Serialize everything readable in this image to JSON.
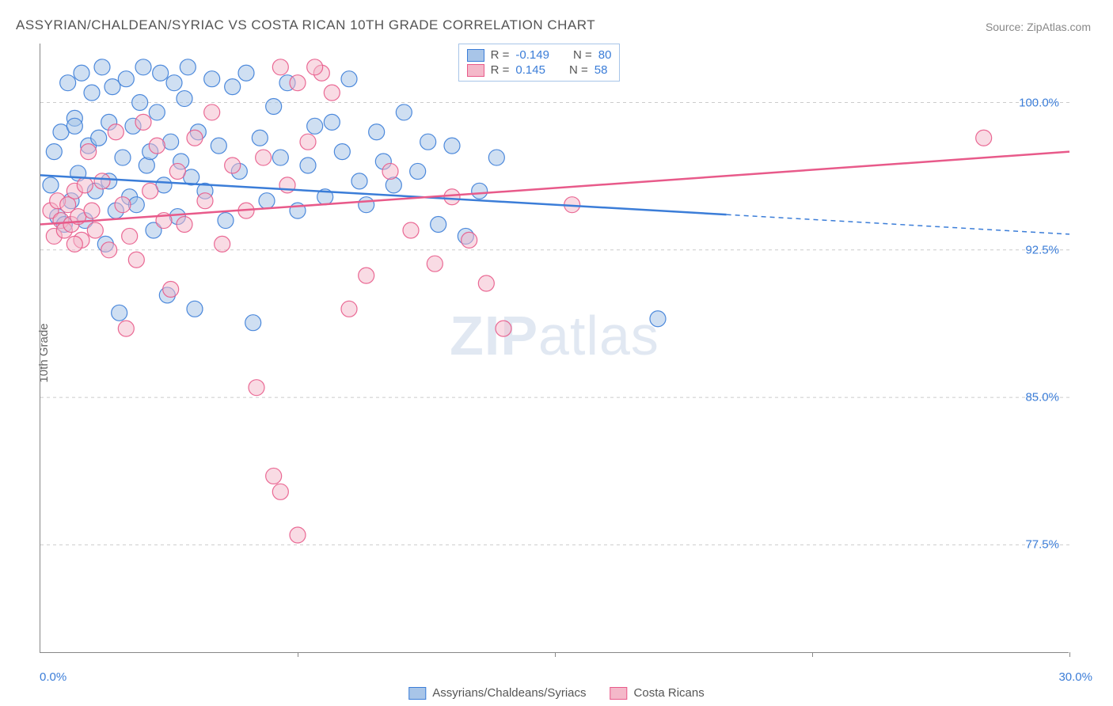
{
  "title": "ASSYRIAN/CHALDEAN/SYRIAC VS COSTA RICAN 10TH GRADE CORRELATION CHART",
  "source": "Source: ZipAtlas.com",
  "ylabel": "10th Grade",
  "watermark_bold": "ZIP",
  "watermark_light": "atlas",
  "chart": {
    "type": "scatter",
    "xlim": [
      0,
      30
    ],
    "ylim": [
      72,
      103
    ],
    "xticks": [
      0,
      7.5,
      15,
      22.5,
      30
    ],
    "xtick_labels": [
      "0.0%",
      "",
      "",
      "",
      "30.0%"
    ],
    "yticks": [
      77.5,
      85.0,
      92.5,
      100.0
    ],
    "ytick_labels": [
      "77.5%",
      "85.0%",
      "92.5%",
      "100.0%"
    ],
    "grid_color": "#cccccc",
    "background_color": "#ffffff",
    "axis_color": "#888888",
    "tick_label_color": "#3b7dd8",
    "series": [
      {
        "name": "Assyrians/Chaldeans/Syriacs",
        "color_fill": "#a8c5e8",
        "color_stroke": "#3b7dd8",
        "marker_radius": 10,
        "marker_opacity": 0.55,
        "R": "-0.149",
        "N": "80",
        "trend": {
          "x1": 0,
          "y1": 96.3,
          "x2": 20,
          "y2": 94.3,
          "width": 2.5,
          "ext_x2": 30,
          "ext_y2": 93.3,
          "dash": "6,5"
        },
        "points": [
          [
            0.3,
            95.8
          ],
          [
            0.4,
            97.5
          ],
          [
            0.5,
            94.2
          ],
          [
            0.6,
            98.5
          ],
          [
            0.7,
            93.8
          ],
          [
            0.8,
            101.0
          ],
          [
            0.9,
            95.0
          ],
          [
            1.0,
            99.2
          ],
          [
            1.1,
            96.4
          ],
          [
            1.2,
            101.5
          ],
          [
            1.3,
            94.0
          ],
          [
            1.4,
            97.8
          ],
          [
            1.5,
            100.5
          ],
          [
            1.6,
            95.5
          ],
          [
            1.7,
            98.2
          ],
          [
            1.8,
            101.8
          ],
          [
            1.9,
            92.8
          ],
          [
            2.0,
            96.0
          ],
          [
            2.1,
            100.8
          ],
          [
            2.2,
            94.5
          ],
          [
            2.3,
            89.3
          ],
          [
            2.4,
            97.2
          ],
          [
            2.5,
            101.2
          ],
          [
            2.6,
            95.2
          ],
          [
            2.7,
            98.8
          ],
          [
            2.8,
            94.8
          ],
          [
            2.9,
            100.0
          ],
          [
            3.0,
            101.8
          ],
          [
            3.1,
            96.8
          ],
          [
            3.2,
            97.5
          ],
          [
            3.3,
            93.5
          ],
          [
            3.4,
            99.5
          ],
          [
            3.5,
            101.5
          ],
          [
            3.6,
            95.8
          ],
          [
            3.7,
            90.2
          ],
          [
            3.8,
            98.0
          ],
          [
            3.9,
            101.0
          ],
          [
            4.0,
            94.2
          ],
          [
            4.1,
            97.0
          ],
          [
            4.2,
            100.2
          ],
          [
            4.3,
            101.8
          ],
          [
            4.4,
            96.2
          ],
          [
            4.5,
            89.5
          ],
          [
            4.6,
            98.5
          ],
          [
            4.8,
            95.5
          ],
          [
            5.0,
            101.2
          ],
          [
            5.2,
            97.8
          ],
          [
            5.4,
            94.0
          ],
          [
            5.6,
            100.8
          ],
          [
            5.8,
            96.5
          ],
          [
            6.0,
            101.5
          ],
          [
            6.2,
            88.8
          ],
          [
            6.4,
            98.2
          ],
          [
            6.6,
            95.0
          ],
          [
            6.8,
            99.8
          ],
          [
            7.0,
            97.2
          ],
          [
            7.2,
            101.0
          ],
          [
            7.5,
            94.5
          ],
          [
            7.8,
            96.8
          ],
          [
            8.0,
            98.8
          ],
          [
            8.3,
            95.2
          ],
          [
            8.5,
            99.0
          ],
          [
            8.8,
            97.5
          ],
          [
            9.0,
            101.2
          ],
          [
            9.3,
            96.0
          ],
          [
            9.5,
            94.8
          ],
          [
            9.8,
            98.5
          ],
          [
            10.0,
            97.0
          ],
          [
            10.3,
            95.8
          ],
          [
            10.6,
            99.5
          ],
          [
            11.0,
            96.5
          ],
          [
            11.3,
            98.0
          ],
          [
            11.6,
            93.8
          ],
          [
            12.0,
            97.8
          ],
          [
            12.4,
            93.2
          ],
          [
            12.8,
            95.5
          ],
          [
            13.3,
            97.2
          ],
          [
            18.0,
            89.0
          ],
          [
            1.0,
            98.8
          ],
          [
            2.0,
            99.0
          ]
        ]
      },
      {
        "name": "Costa Ricans",
        "color_fill": "#f4b8c9",
        "color_stroke": "#e85a8a",
        "marker_radius": 10,
        "marker_opacity": 0.5,
        "R": "0.145",
        "N": "58",
        "trend": {
          "x1": 0,
          "y1": 93.8,
          "x2": 30,
          "y2": 97.5,
          "width": 2.5
        },
        "points": [
          [
            0.3,
            94.5
          ],
          [
            0.4,
            93.2
          ],
          [
            0.5,
            95.0
          ],
          [
            0.6,
            94.0
          ],
          [
            0.7,
            93.5
          ],
          [
            0.8,
            94.8
          ],
          [
            0.9,
            93.8
          ],
          [
            1.0,
            95.5
          ],
          [
            1.1,
            94.2
          ],
          [
            1.2,
            93.0
          ],
          [
            1.3,
            95.8
          ],
          [
            1.4,
            97.5
          ],
          [
            1.5,
            94.5
          ],
          [
            1.6,
            93.5
          ],
          [
            1.8,
            96.0
          ],
          [
            2.0,
            92.5
          ],
          [
            2.2,
            98.5
          ],
          [
            2.4,
            94.8
          ],
          [
            2.5,
            88.5
          ],
          [
            2.6,
            93.2
          ],
          [
            2.8,
            92.0
          ],
          [
            3.0,
            99.0
          ],
          [
            3.2,
            95.5
          ],
          [
            3.4,
            97.8
          ],
          [
            3.6,
            94.0
          ],
          [
            3.8,
            90.5
          ],
          [
            4.0,
            96.5
          ],
          [
            4.2,
            93.8
          ],
          [
            4.5,
            98.2
          ],
          [
            4.8,
            95.0
          ],
          [
            5.0,
            99.5
          ],
          [
            5.3,
            92.8
          ],
          [
            5.6,
            96.8
          ],
          [
            6.0,
            94.5
          ],
          [
            6.3,
            85.5
          ],
          [
            6.5,
            97.2
          ],
          [
            6.8,
            81.0
          ],
          [
            7.0,
            80.2
          ],
          [
            7.2,
            95.8
          ],
          [
            7.5,
            78.0
          ],
          [
            7.8,
            98.0
          ],
          [
            8.2,
            101.5
          ],
          [
            8.5,
            100.5
          ],
          [
            9.0,
            89.5
          ],
          [
            9.5,
            91.2
          ],
          [
            10.2,
            96.5
          ],
          [
            10.8,
            93.5
          ],
          [
            11.5,
            91.8
          ],
          [
            12.0,
            95.2
          ],
          [
            12.5,
            93.0
          ],
          [
            13.0,
            90.8
          ],
          [
            13.5,
            88.5
          ],
          [
            15.5,
            94.8
          ],
          [
            7.0,
            101.8
          ],
          [
            7.5,
            101.0
          ],
          [
            8.0,
            101.8
          ],
          [
            27.5,
            98.2
          ],
          [
            1.0,
            92.8
          ]
        ]
      }
    ],
    "legend_bottom": [
      {
        "label": "Assyrians/Chaldeans/Syriacs",
        "fill": "#a8c5e8",
        "stroke": "#3b7dd8"
      },
      {
        "label": "Costa Ricans",
        "fill": "#f4b8c9",
        "stroke": "#e85a8a"
      }
    ]
  }
}
